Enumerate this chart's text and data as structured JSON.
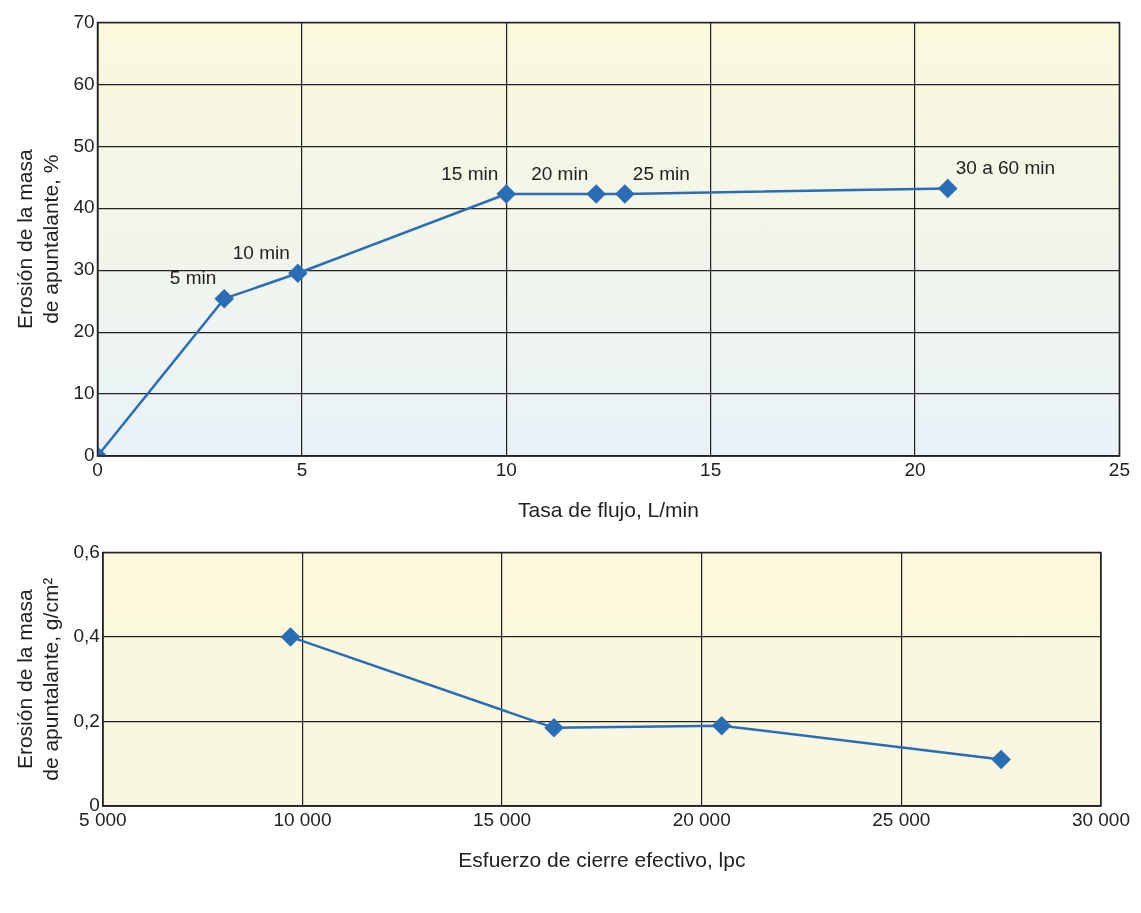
{
  "chart_data": [
    {
      "type": "line",
      "xlabel": "Tasa de flujo, L/min",
      "ylabel": "Erosión de la masa de apuntalante, %",
      "x": [
        0,
        3.1,
        4.9,
        10,
        12.2,
        12.9,
        20.8
      ],
      "series": [
        {
          "color": "#2a6db5",
          "values": [
            0,
            25.4,
            29.5,
            42.3,
            42.3,
            42.3,
            43.2
          ]
        }
      ],
      "xlim": [
        0,
        25
      ],
      "xticks": [
        0,
        5,
        10,
        15,
        20,
        25
      ],
      "ylim": [
        0,
        70
      ],
      "yticks": [
        0,
        10,
        20,
        30,
        40,
        50,
        60,
        70
      ],
      "grid": true,
      "marker": "diamond",
      "line_style": "solid",
      "annotations": [
        {
          "text": "5 min",
          "x": 3.1,
          "y": 25.4
        },
        {
          "text": "10 min",
          "x": 4.9,
          "y": 29.5
        },
        {
          "text": "15 min",
          "x": 10,
          "y": 42.3
        },
        {
          "text": "20 min",
          "x": 12.2,
          "y": 42.3
        },
        {
          "text": "25 min",
          "x": 12.9,
          "y": 42.3
        },
        {
          "text": "30 a 60 min",
          "x": 20.8,
          "y": 43.2
        }
      ]
    },
    {
      "type": "line",
      "xlabel": "Esfuerzo de cierre efectivo, lpc",
      "ylabel": "Erosión de la masa de apuntalante, g/cm²",
      "x": [
        9700,
        16300,
        20500,
        27500
      ],
      "series": [
        {
          "color": "#2a6db5",
          "values": [
            0.4,
            0.185,
            0.19,
            0.11
          ]
        }
      ],
      "xlim": [
        5000,
        30000
      ],
      "xticks": [
        {
          "value": 5000,
          "label": "5 000"
        },
        {
          "value": 10000,
          "label": "10 000"
        },
        {
          "value": 15000,
          "label": "15 000"
        },
        {
          "value": 20000,
          "label": "20 000"
        },
        {
          "value": 25000,
          "label": "25 000"
        },
        {
          "value": 30000,
          "label": "30 000"
        }
      ],
      "ylim": [
        0,
        0.6
      ],
      "yticks": [
        0,
        {
          "value": 0.2,
          "label": "0,2"
        },
        {
          "value": 0.4,
          "label": "0,4"
        },
        {
          "value": 0.6,
          "label": "0,6"
        }
      ],
      "grid": true,
      "marker": "diamond",
      "line_style": "solid"
    }
  ]
}
